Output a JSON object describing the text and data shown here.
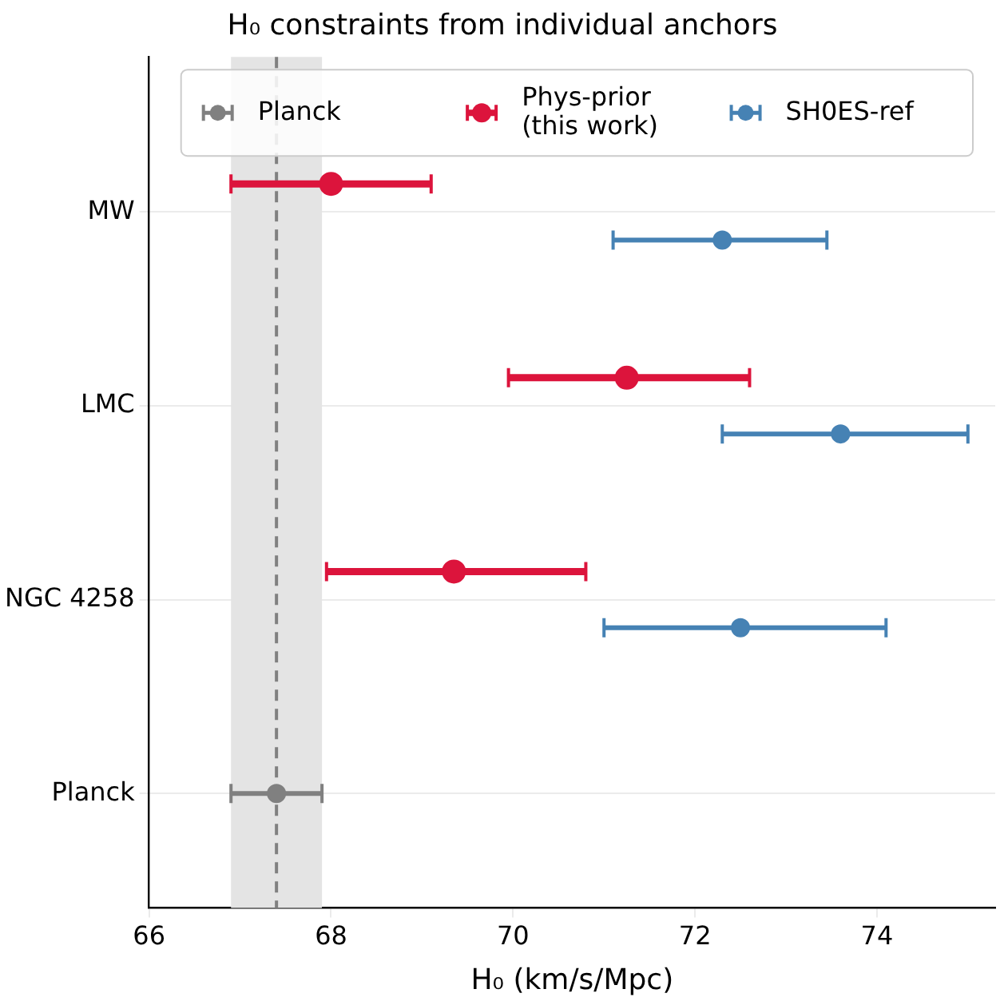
{
  "chart_data": {
    "type": "scatter",
    "orientation": "horizontal",
    "title": "H₀ constraints from individual anchors",
    "xlabel": "H₀ (km/s/Mpc)",
    "categories": [
      "MW",
      "LMC",
      "NGC 4258",
      "Planck"
    ],
    "series": [
      {
        "name": "Planck",
        "color": "#808080",
        "values": [
          null,
          null,
          null,
          67.4
        ],
        "errors": [
          null,
          null,
          null,
          0.5
        ]
      },
      {
        "name": "Phys-prior\n(this work)",
        "color": "#dc143c",
        "values": [
          68.0,
          71.25,
          69.35,
          null
        ],
        "errors": [
          [
            66.9,
            69.1
          ],
          [
            69.95,
            72.6
          ],
          [
            67.95,
            70.8
          ],
          null
        ]
      },
      {
        "name": "SH0ES-ref",
        "color": "#4682b4",
        "values": [
          72.3,
          73.6,
          72.5,
          null
        ],
        "errors": [
          [
            71.1,
            73.45
          ],
          [
            72.3,
            75.0
          ],
          [
            71.0,
            74.1
          ],
          null
        ]
      }
    ],
    "xlim": [
      66,
      75.3
    ],
    "xticks": [
      66,
      68,
      70,
      72,
      74
    ],
    "ref_lines": [
      {
        "axis": "x",
        "value": 67.4,
        "color": "#808080",
        "line_style": "dashed"
      }
    ],
    "bands": [
      {
        "axis": "x",
        "from": 66.9,
        "to": 67.9,
        "color": "#e4e4e4"
      }
    ],
    "grid": "y",
    "legend": "top",
    "marker": "circle"
  }
}
